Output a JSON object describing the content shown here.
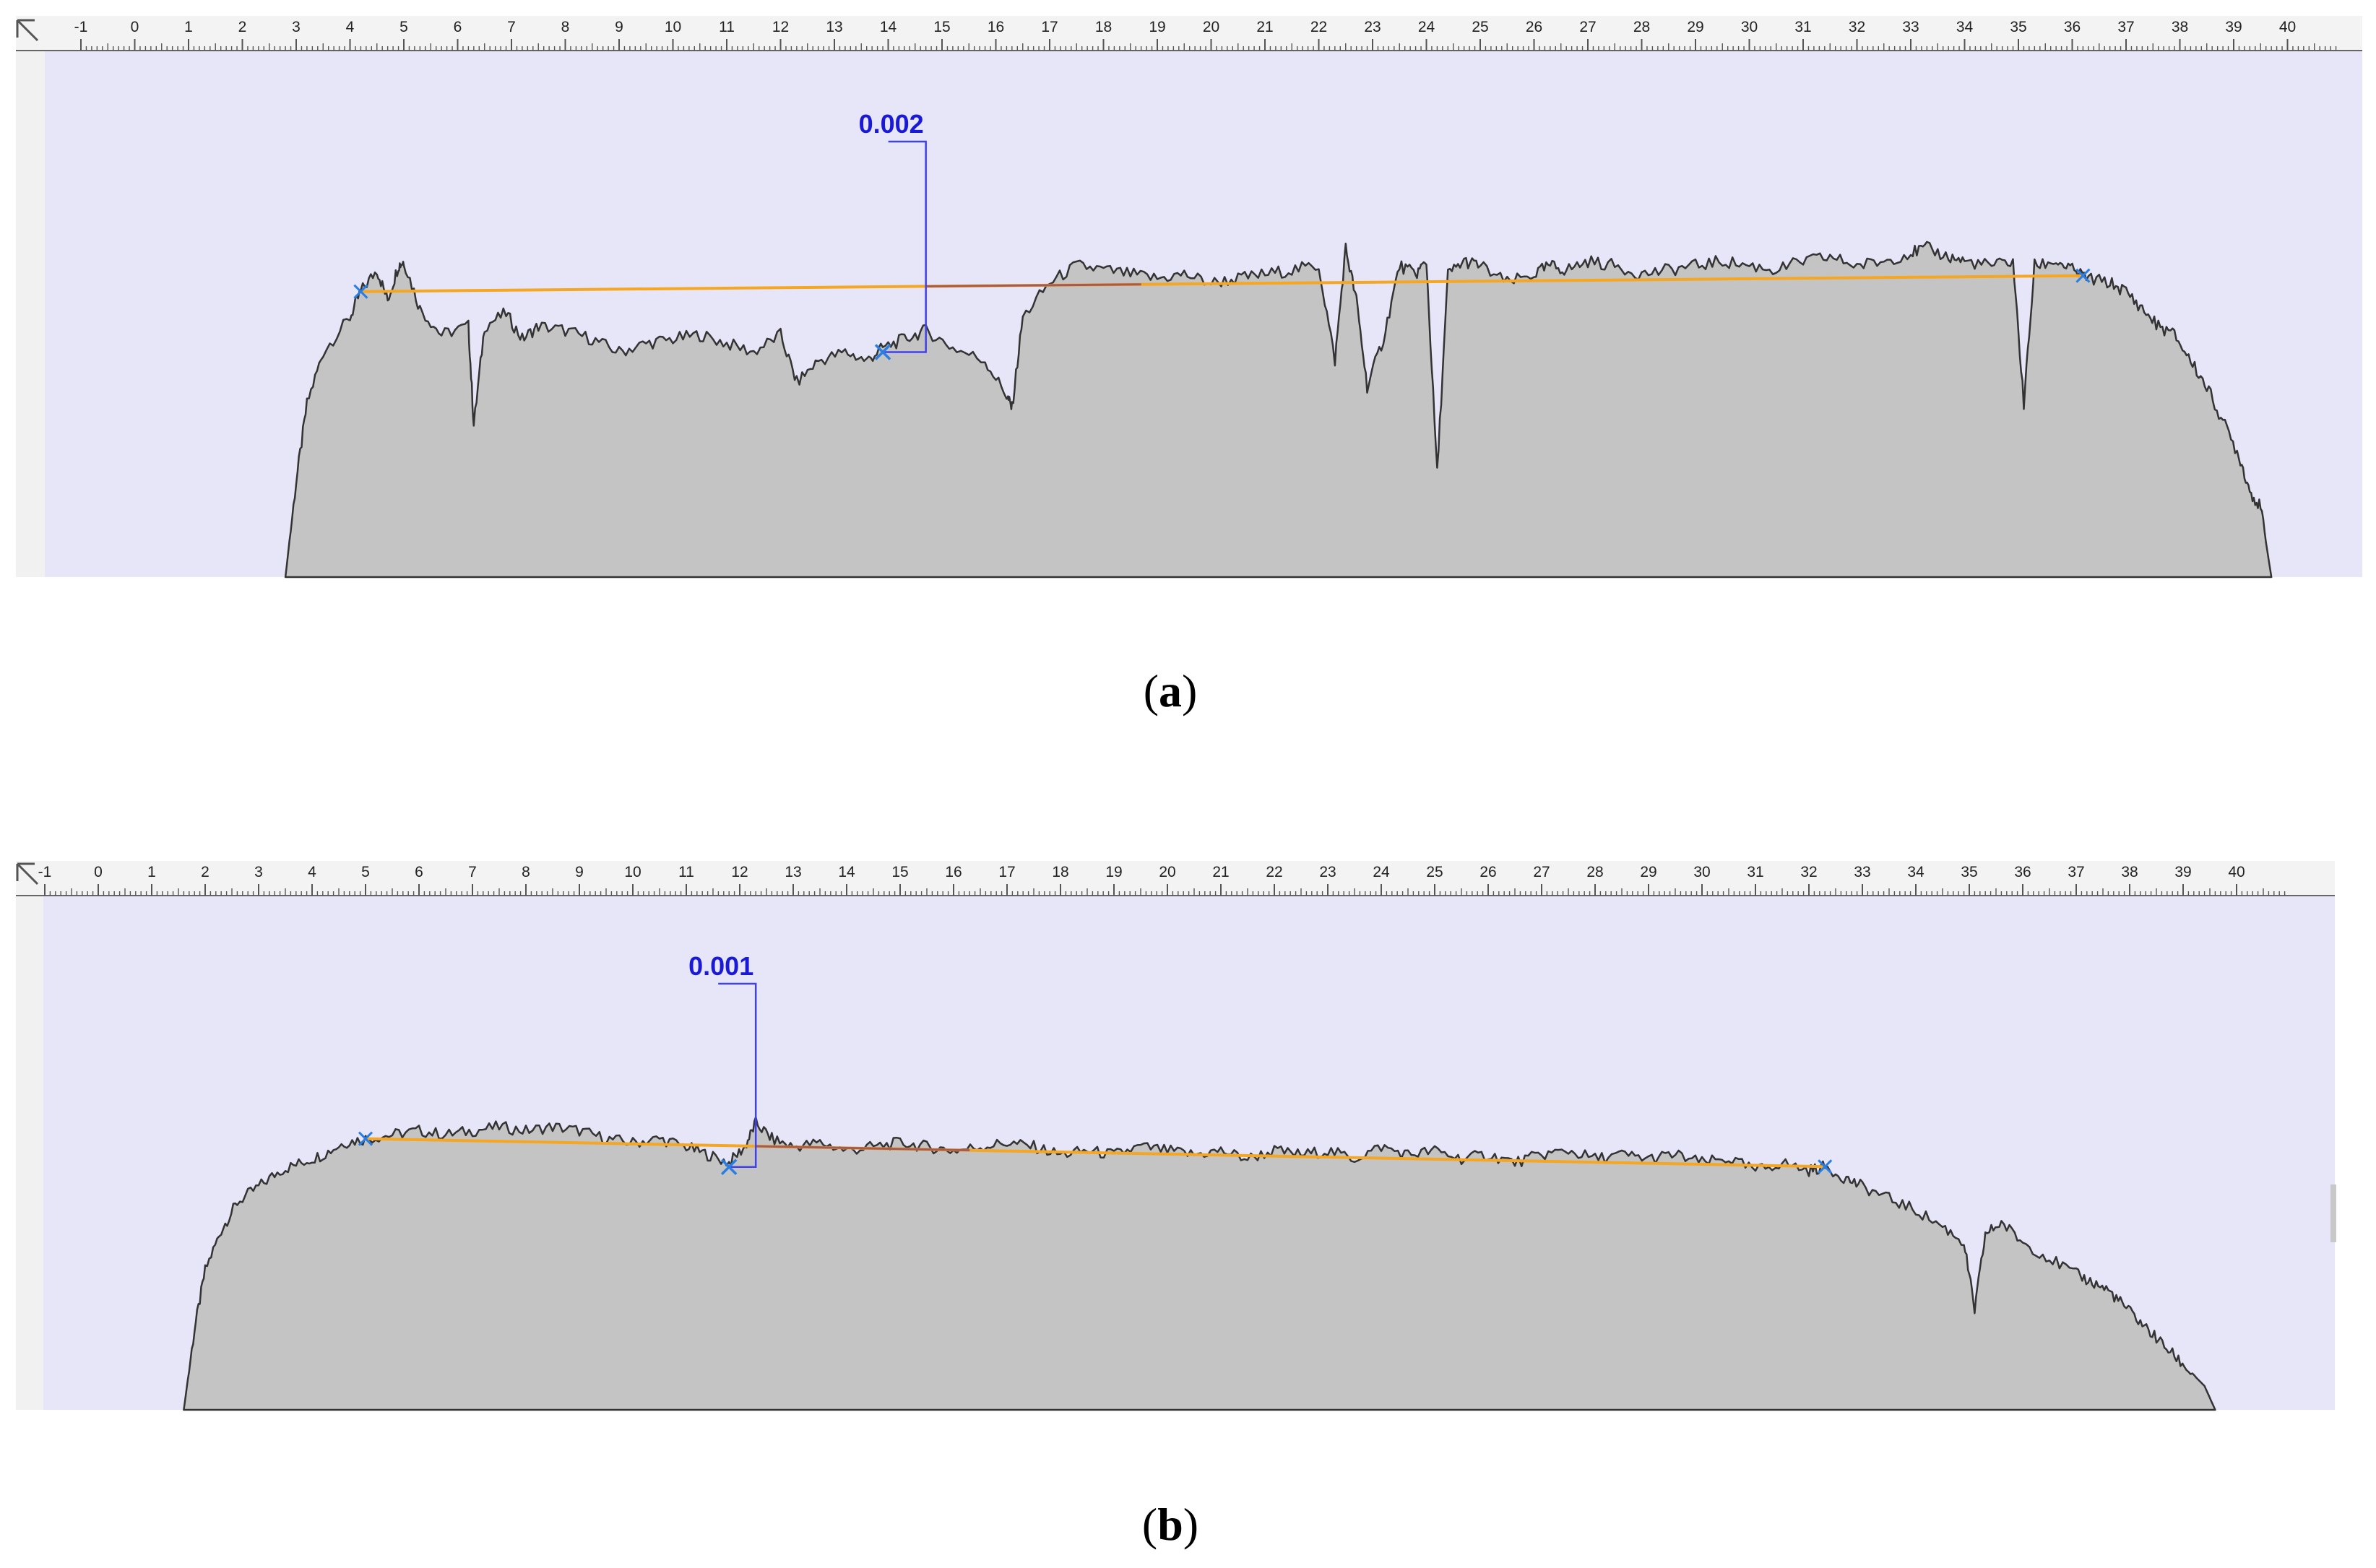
{
  "panels": [
    {
      "id": "a",
      "caption": {
        "open": "(",
        "letter": "a",
        "close": ")"
      },
      "ruler": {
        "min": -1,
        "max": 41
      },
      "measurement": {
        "label": "0.002",
        "reference_line": {
          "x_start": 4.2,
          "x_end": 36.2
        },
        "marker_x": 13.9,
        "bracket_x": 14.7
      }
    },
    {
      "id": "b",
      "caption": {
        "open": "(",
        "letter": "b",
        "close": ")"
      },
      "ruler": {
        "min": -1,
        "max": 41
      },
      "measurement": {
        "label": "0.001",
        "reference_line": {
          "x_start": 5.0,
          "x_end": 32.3
        },
        "marker_x": 11.8,
        "bracket_x": 12.3
      }
    }
  ],
  "colors": {
    "plot_background": "#e6e6f8",
    "profile_fill": "#c4c4c4",
    "profile_stroke": "#333333",
    "reference_line": "#f5a623",
    "reference_line_dark": "#a55a52",
    "measure_line": "#4040ee",
    "measure_label": "#1a1ad6",
    "marker": "#2a7de1",
    "ruler_background": "#f3f3f3",
    "side_strip": "#f1f1f1"
  },
  "chart_data": [
    {
      "panel": "a",
      "type": "area",
      "x_range": [
        -1,
        41
      ],
      "y_range": [
        0,
        1
      ],
      "annotations": [
        "0.002"
      ],
      "x": [
        2.8,
        3.0,
        3.2,
        3.5,
        4.0,
        4.2,
        4.5,
        4.7,
        4.9,
        5.0,
        5.3,
        5.7,
        6.2,
        6.3,
        6.5,
        6.9,
        7.2,
        7.5,
        8.0,
        8.5,
        9.0,
        9.5,
        10.0,
        10.5,
        11.0,
        11.5,
        12.0,
        12.3,
        12.7,
        13.2,
        13.6,
        13.9,
        14.3,
        14.7,
        15.2,
        15.8,
        16.2,
        16.3,
        16.5,
        17.0,
        17.5,
        18.0,
        18.5,
        19.0,
        19.5,
        20.0,
        20.5,
        21.0,
        21.5,
        22.0,
        22.3,
        22.5,
        22.7,
        22.9,
        23.2,
        23.5,
        23.8,
        24.0,
        24.2,
        24.4,
        24.7,
        25.0,
        25.5,
        26.0,
        26.3,
        26.6,
        27.0,
        27.5,
        28.0,
        28.5,
        29.0,
        29.5,
        30.0,
        30.5,
        31.0,
        31.5,
        32.0,
        32.5,
        33.0,
        33.3,
        33.7,
        34.0,
        34.5,
        34.9,
        35.1,
        35.3,
        35.7,
        36.0,
        36.3,
        36.7,
        37.0,
        37.3,
        37.6,
        37.9,
        38.2,
        38.5,
        38.8,
        39.1,
        39.3,
        39.5,
        39.7
      ],
      "y": [
        0.0,
        0.22,
        0.4,
        0.52,
        0.6,
        0.66,
        0.71,
        0.64,
        0.72,
        0.73,
        0.62,
        0.56,
        0.58,
        0.35,
        0.58,
        0.61,
        0.55,
        0.58,
        0.57,
        0.55,
        0.52,
        0.54,
        0.55,
        0.56,
        0.54,
        0.52,
        0.56,
        0.45,
        0.5,
        0.52,
        0.5,
        0.53,
        0.55,
        0.57,
        0.53,
        0.5,
        0.42,
        0.39,
        0.6,
        0.68,
        0.72,
        0.71,
        0.7,
        0.69,
        0.7,
        0.68,
        0.69,
        0.7,
        0.71,
        0.72,
        0.5,
        0.76,
        0.64,
        0.44,
        0.55,
        0.72,
        0.7,
        0.73,
        0.24,
        0.7,
        0.73,
        0.72,
        0.68,
        0.7,
        0.72,
        0.71,
        0.73,
        0.72,
        0.7,
        0.71,
        0.72,
        0.73,
        0.72,
        0.71,
        0.73,
        0.74,
        0.72,
        0.73,
        0.75,
        0.76,
        0.74,
        0.73,
        0.72,
        0.73,
        0.4,
        0.72,
        0.73,
        0.71,
        0.69,
        0.68,
        0.66,
        0.62,
        0.58,
        0.56,
        0.5,
        0.44,
        0.36,
        0.28,
        0.2,
        0.16,
        0.0
      ]
    },
    {
      "panel": "b",
      "type": "area",
      "x_range": [
        -1,
        41
      ],
      "y_range": [
        0,
        1
      ],
      "annotations": [
        "0.001"
      ],
      "x": [
        1.6,
        1.8,
        2.0,
        2.3,
        2.6,
        3.0,
        3.4,
        3.8,
        4.2,
        4.6,
        5.0,
        5.5,
        6.0,
        6.5,
        7.0,
        7.5,
        8.0,
        8.5,
        9.0,
        9.5,
        10.0,
        10.5,
        11.0,
        11.4,
        11.8,
        12.1,
        12.3,
        12.6,
        13.0,
        13.5,
        14.0,
        14.5,
        15.0,
        15.5,
        16.0,
        16.5,
        17.0,
        17.5,
        18.0,
        18.5,
        19.0,
        19.5,
        20.0,
        20.5,
        21.0,
        21.5,
        22.0,
        22.5,
        23.0,
        23.5,
        24.0,
        24.5,
        25.0,
        25.5,
        26.0,
        26.5,
        27.0,
        27.5,
        28.0,
        28.5,
        29.0,
        29.5,
        30.0,
        30.5,
        31.0,
        31.5,
        32.0,
        32.3,
        32.7,
        33.0,
        33.5,
        34.0,
        34.5,
        34.9,
        35.1,
        35.3,
        35.6,
        36.0,
        36.5,
        37.0,
        37.3,
        37.6,
        37.9,
        38.2,
        38.5,
        38.8,
        39.1,
        39.4,
        39.6
      ],
      "y": [
        0.0,
        0.2,
        0.35,
        0.45,
        0.52,
        0.56,
        0.6,
        0.62,
        0.64,
        0.67,
        0.68,
        0.69,
        0.7,
        0.69,
        0.7,
        0.71,
        0.7,
        0.71,
        0.7,
        0.68,
        0.67,
        0.68,
        0.66,
        0.64,
        0.62,
        0.66,
        0.72,
        0.68,
        0.66,
        0.67,
        0.65,
        0.66,
        0.67,
        0.66,
        0.65,
        0.66,
        0.67,
        0.66,
        0.64,
        0.65,
        0.64,
        0.66,
        0.65,
        0.64,
        0.65,
        0.63,
        0.65,
        0.64,
        0.65,
        0.63,
        0.66,
        0.64,
        0.65,
        0.63,
        0.64,
        0.62,
        0.64,
        0.65,
        0.63,
        0.64,
        0.63,
        0.64,
        0.62,
        0.63,
        0.6,
        0.62,
        0.6,
        0.61,
        0.58,
        0.56,
        0.53,
        0.5,
        0.46,
        0.42,
        0.25,
        0.44,
        0.47,
        0.42,
        0.38,
        0.34,
        0.32,
        0.3,
        0.26,
        0.22,
        0.18,
        0.14,
        0.1,
        0.06,
        0.0
      ]
    }
  ]
}
